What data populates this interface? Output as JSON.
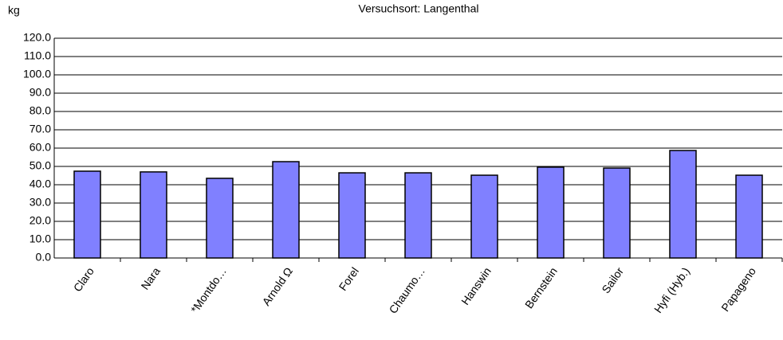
{
  "chart_data": {
    "type": "bar",
    "subtitle": "Versuchsort: Langenthal",
    "y_label": "kg",
    "categories": [
      "Claro",
      "Nara",
      "*Montdo…",
      "Arnold  Ω",
      "Forel",
      "Chaumo…",
      "Hanswin",
      "Bernstein",
      "Sailor",
      "Hyfi (Hyb.)",
      "Papageno"
    ],
    "values": [
      47.4,
      47.0,
      43.5,
      52.6,
      46.5,
      46.5,
      45.2,
      49.6,
      49.1,
      58.7,
      45.2
    ],
    "color": "#8080ff",
    "ylim": [
      0,
      120
    ],
    "yticks": [
      {
        "value": 0,
        "label": "0.0"
      },
      {
        "value": 10,
        "label": "10.0"
      },
      {
        "value": 20,
        "label": "20.0"
      },
      {
        "value": 30,
        "label": "30.0"
      },
      {
        "value": 40,
        "label": "40.0"
      },
      {
        "value": 50,
        "label": "50.0"
      },
      {
        "value": 60,
        "label": "60.0"
      },
      {
        "value": 70,
        "label": "70.0"
      },
      {
        "value": 80,
        "label": "80.0"
      },
      {
        "value": 90,
        "label": "90.0"
      },
      {
        "value": 100,
        "label": "100.0"
      },
      {
        "value": 110,
        "label": "110.0"
      },
      {
        "value": 120,
        "label": "120.0"
      }
    ],
    "grid": true
  }
}
